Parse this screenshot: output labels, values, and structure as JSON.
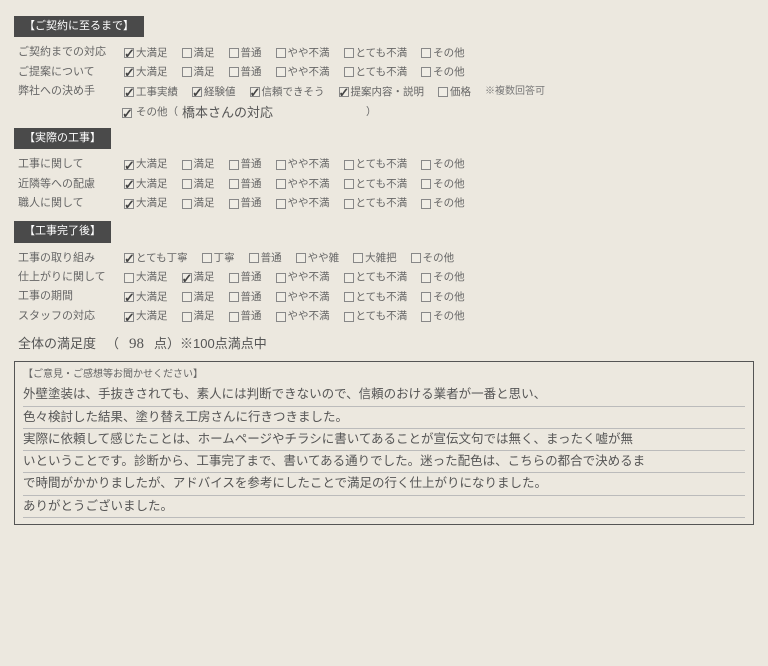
{
  "sections": [
    {
      "header": "【ご契約に至るまで】",
      "rows": [
        {
          "label": "ご契約までの対応",
          "options": [
            {
              "t": "大満足",
              "c": true
            },
            {
              "t": "満足",
              "c": false
            },
            {
              "t": "普通",
              "c": false
            },
            {
              "t": "やや不満",
              "c": false
            },
            {
              "t": "とても不満",
              "c": false
            },
            {
              "t": "その他",
              "c": false
            }
          ]
        },
        {
          "label": "ご提案について",
          "options": [
            {
              "t": "大満足",
              "c": true
            },
            {
              "t": "満足",
              "c": false
            },
            {
              "t": "普通",
              "c": false
            },
            {
              "t": "やや不満",
              "c": false
            },
            {
              "t": "とても不満",
              "c": false
            },
            {
              "t": "その他",
              "c": false
            }
          ]
        },
        {
          "label": "弊社への決め手",
          "options": [
            {
              "t": "工事実績",
              "c": true
            },
            {
              "t": "経験値",
              "c": true
            },
            {
              "t": "信頼できそう",
              "c": true
            },
            {
              "t": "提案内容・説明",
              "c": true
            },
            {
              "t": "価格",
              "c": false
            }
          ],
          "note": "※複数回答可",
          "other": {
            "c": true,
            "label": "その他（",
            "value": "橋本さんの対応",
            "close": "）"
          }
        }
      ]
    },
    {
      "header": "【実際の工事】",
      "rows": [
        {
          "label": "工事に関して",
          "options": [
            {
              "t": "大満足",
              "c": true
            },
            {
              "t": "満足",
              "c": false
            },
            {
              "t": "普通",
              "c": false
            },
            {
              "t": "やや不満",
              "c": false
            },
            {
              "t": "とても不満",
              "c": false
            },
            {
              "t": "その他",
              "c": false
            }
          ]
        },
        {
          "label": "近隣等への配慮",
          "options": [
            {
              "t": "大満足",
              "c": true
            },
            {
              "t": "満足",
              "c": false
            },
            {
              "t": "普通",
              "c": false
            },
            {
              "t": "やや不満",
              "c": false
            },
            {
              "t": "とても不満",
              "c": false
            },
            {
              "t": "その他",
              "c": false
            }
          ]
        },
        {
          "label": "職人に関して",
          "options": [
            {
              "t": "大満足",
              "c": true
            },
            {
              "t": "満足",
              "c": false
            },
            {
              "t": "普通",
              "c": false
            },
            {
              "t": "やや不満",
              "c": false
            },
            {
              "t": "とても不満",
              "c": false
            },
            {
              "t": "その他",
              "c": false
            }
          ]
        }
      ]
    },
    {
      "header": "【工事完了後】",
      "rows": [
        {
          "label": "工事の取り組み",
          "options": [
            {
              "t": "とても丁寧",
              "c": true
            },
            {
              "t": "丁寧",
              "c": false
            },
            {
              "t": "普通",
              "c": false
            },
            {
              "t": "やや雑",
              "c": false
            },
            {
              "t": "大雑把",
              "c": false
            },
            {
              "t": "その他",
              "c": false
            }
          ]
        },
        {
          "label": "仕上がりに関して",
          "options": [
            {
              "t": "大満足",
              "c": false
            },
            {
              "t": "満足",
              "c": true
            },
            {
              "t": "普通",
              "c": false
            },
            {
              "t": "やや不満",
              "c": false
            },
            {
              "t": "とても不満",
              "c": false
            },
            {
              "t": "その他",
              "c": false
            }
          ]
        },
        {
          "label": "工事の期間",
          "options": [
            {
              "t": "大満足",
              "c": true
            },
            {
              "t": "満足",
              "c": false
            },
            {
              "t": "普通",
              "c": false
            },
            {
              "t": "やや不満",
              "c": false
            },
            {
              "t": "とても不満",
              "c": false
            },
            {
              "t": "その他",
              "c": false
            }
          ]
        },
        {
          "label": "スタッフの対応",
          "options": [
            {
              "t": "大満足",
              "c": true
            },
            {
              "t": "満足",
              "c": false
            },
            {
              "t": "普通",
              "c": false
            },
            {
              "t": "やや不満",
              "c": false
            },
            {
              "t": "とても不満",
              "c": false
            },
            {
              "t": "その他",
              "c": false
            }
          ]
        }
      ]
    }
  ],
  "total": {
    "label": "全体の満足度",
    "open": "（",
    "score": "98",
    "unit": "点）※100点満点中"
  },
  "comment": {
    "title": "【ご意見・ご感想等お聞かせください】",
    "lines": [
      "外壁塗装は、手抜きされても、素人には判断できないので、信頼のおける業者が一番と思い、",
      "色々検討した結果、塗り替え工房さんに行きつきました。",
      "実際に依頼して感じたことは、ホームページやチラシに書いてあることが宣伝文句では無く、まったく嘘が無",
      "いということです。診断から、工事完了まで、書いてある通りでした。迷った配色は、こちらの都合で決めるま",
      "で時間がかかりましたが、アドバイスを参考にしたことで満足の行く仕上がりになりました。",
      "ありがとうございました。"
    ]
  }
}
